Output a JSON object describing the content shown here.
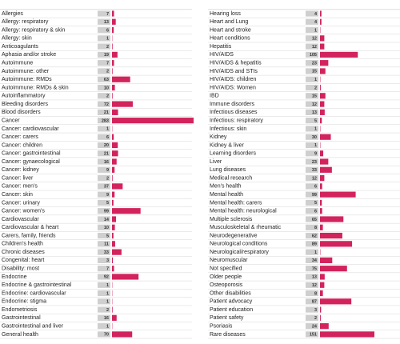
{
  "chart_data": [
    {
      "type": "bar",
      "orientation": "horizontal",
      "color": "#d2235d",
      "categories": [
        "Allergies",
        "Allergy: respiratory",
        "Allergy: respiratory & skin",
        "Allergy: skin",
        "Anticoagulants",
        "Aphasia and/or stroke",
        "Autoimmune",
        "Autoimmune: other",
        "Autoimmune: RMDs",
        "Autoimmune: RMDs & skin",
        "Autoinflammatory",
        "Bleeding disorders",
        "Blood disorders",
        "Cancer",
        "Cancer: cardiovascular",
        "Cancer: carers",
        "Cancer: children",
        "Cancer: gastrointestinal",
        "Cancer: gynaecological",
        "Cancer: kidney",
        "Cancer: liver",
        "Cancer: men's",
        "Cancer: skin",
        "Cancer: urinary",
        "Cancer: women's",
        "Cardiovascular",
        "Cardiovascular & heart",
        "Carers, family, friends",
        "Children's health",
        "Chronic diseases",
        "Congenital: heart",
        "Disability: most",
        "Endocrine",
        "Endocrine & gastrointestinal",
        "Endocrine: cardiovascular",
        "Endocrine: stigma",
        "Endometriosis",
        "Gastrointestinal",
        "Gastrointestinal and liver",
        "General health"
      ],
      "values": [
        7,
        13,
        6,
        1,
        2,
        19,
        7,
        2,
        63,
        10,
        2,
        72,
        21,
        283,
        1,
        6,
        20,
        21,
        16,
        9,
        2,
        37,
        9,
        5,
        99,
        14,
        10,
        5,
        11,
        33,
        3,
        7,
        92,
        1,
        1,
        1,
        2,
        16,
        1,
        70
      ]
    },
    {
      "type": "bar",
      "orientation": "horizontal",
      "color": "#d2235d",
      "categories": [
        "Hearing loss",
        "Heart and Lung",
        "Heart and stroke",
        "Heart conditions",
        "Hepatitis",
        "HIV/AIDS",
        "HIV/AIDS & hepatitis",
        "HIV/AIDS and STIs",
        "HIV/AIDS: children",
        "HIV/AIDS: Women",
        "IBD",
        "Immune disorders",
        "Infectious diseases",
        "Infectious: respiratory",
        "Infectious: skin",
        "Kidney",
        "Kidney & liver",
        "Learning disorders",
        "Liver",
        "Lung diseases",
        "Medical research",
        "Men's health",
        "Mental health",
        "Mental health: carers",
        "Mental health: neurological",
        "Multiple sclerosis",
        "Musculoskeletal & rheumatic",
        "Neurodegenerative",
        "Neurological conditions",
        "Neurological/respiratory",
        "Neuromuscular",
        "Not specified",
        "Older people",
        "Osteoporosis",
        "Other disabilities",
        "Patient advocacy",
        "Patient education",
        "Patient safety",
        "Psoriasis",
        "Rare diseases"
      ],
      "values": [
        4,
        4,
        1,
        12,
        12,
        105,
        23,
        15,
        1,
        2,
        15,
        12,
        13,
        5,
        1,
        30,
        1,
        9,
        23,
        33,
        12,
        6,
        99,
        5,
        6,
        65,
        8,
        62,
        89,
        1,
        34,
        75,
        13,
        12,
        8,
        87,
        3,
        2,
        24,
        151
      ]
    }
  ]
}
